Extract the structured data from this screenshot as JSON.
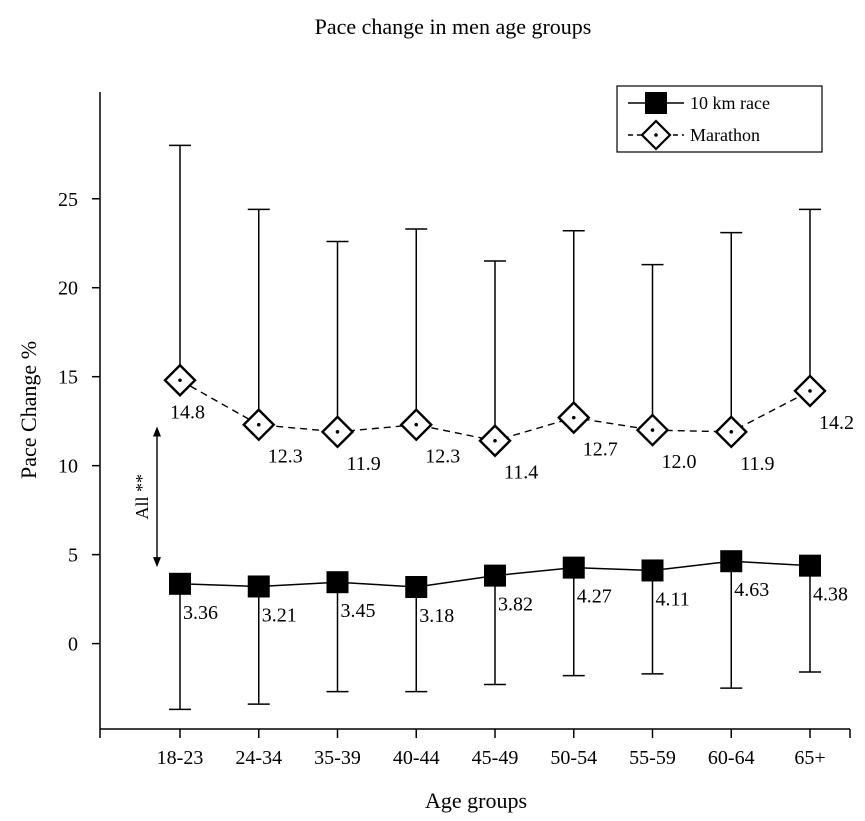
{
  "chart_data": {
    "type": "line",
    "title": "Pace change in men age groups",
    "xlabel": "Age groups",
    "ylabel": "Pace Change %",
    "categories": [
      "18-23",
      "24-34",
      "35-39",
      "40-44",
      "45-49",
      "50-54",
      "55-59",
      "60-64",
      "65+"
    ],
    "ylim": [
      -4.8,
      31
    ],
    "yticks": [
      0,
      5,
      10,
      15,
      20,
      25
    ],
    "grid": false,
    "legend_position": "top-right",
    "series": [
      {
        "name": "10 km race",
        "marker": "filled-square",
        "line_style": "solid",
        "values": [
          3.36,
          3.21,
          3.45,
          3.18,
          3.82,
          4.27,
          4.11,
          4.63,
          4.38
        ],
        "labels": [
          "3.36",
          "3.21",
          "3.45",
          "3.18",
          "3.82",
          "4.27",
          "4.11",
          "4.63",
          "4.38"
        ],
        "error_lower": [
          -3.7,
          -3.4,
          -2.7,
          -2.7,
          -2.3,
          -1.8,
          -1.7,
          -2.5,
          -1.6
        ]
      },
      {
        "name": "Marathon",
        "marker": "open-diamond-dot",
        "line_style": "dashed",
        "values": [
          14.8,
          12.3,
          11.9,
          12.3,
          11.4,
          12.7,
          12.0,
          11.9,
          14.2
        ],
        "labels": [
          "14.8",
          "12.3",
          "11.9",
          "12.3",
          "11.4",
          "12.7",
          "12.0",
          "11.9",
          "14.2"
        ],
        "error_upper": [
          28.0,
          24.4,
          22.6,
          23.3,
          21.5,
          23.2,
          21.3,
          23.1,
          24.4
        ]
      }
    ],
    "annotation": {
      "text": "All **",
      "from_value": 12.2,
      "to_value": 4.3
    }
  }
}
